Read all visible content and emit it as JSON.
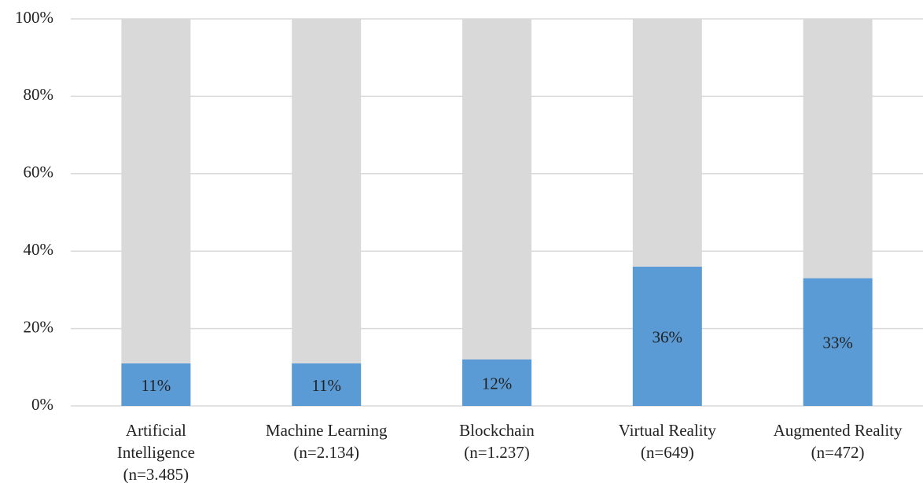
{
  "chart_data": {
    "type": "stacked_bar",
    "categories": [
      [
        "Artificial",
        "Intelligence",
        "(n=3.485)"
      ],
      [
        "Machine Learning",
        "(n=2.134)"
      ],
      [
        "Blockchain",
        "(n=1.237)"
      ],
      [
        "Virtual Reality",
        "(n=649)"
      ],
      [
        "Augmented Reality",
        "(n=472)"
      ]
    ],
    "series": [
      {
        "color": "#5b9bd5",
        "values": [
          11,
          11,
          12,
          36,
          33
        ],
        "value_labels": [
          "11%",
          "11%",
          "12%",
          "36%",
          "33%"
        ]
      },
      {
        "color": "#d9d9d9",
        "values": [
          89,
          89,
          88,
          64,
          67
        ]
      }
    ],
    "ylim": [
      0,
      100
    ],
    "yticks": [
      {
        "value": 0,
        "label": "0%"
      },
      {
        "value": 20,
        "label": "20%"
      },
      {
        "value": 40,
        "label": "40%"
      },
      {
        "value": 60,
        "label": "60%"
      },
      {
        "value": 80,
        "label": "80%"
      },
      {
        "value": 100,
        "label": "100%"
      }
    ],
    "grid": true
  }
}
